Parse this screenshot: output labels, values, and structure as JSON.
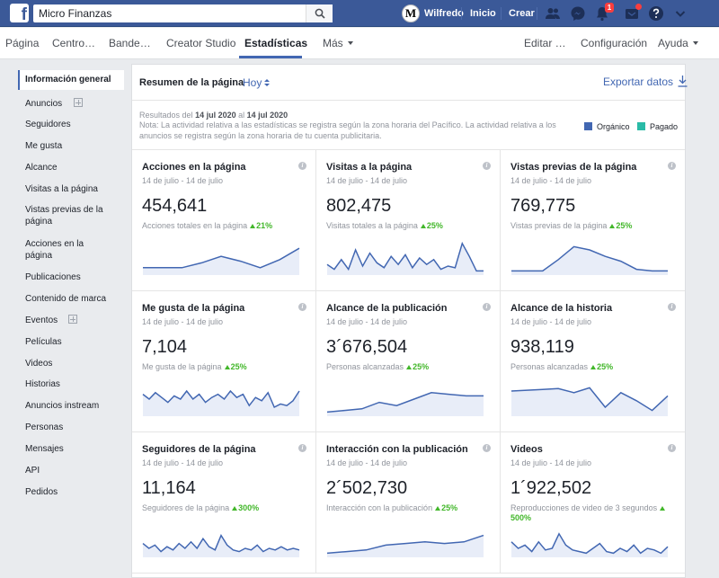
{
  "topbar": {
    "search_value": "Micro Finanzas",
    "user_name": "Wilfredo",
    "user_initial": "M",
    "home_label": "Inicio",
    "create_label": "Crear",
    "notifications_count": "1"
  },
  "pagenav": {
    "items": [
      "Página",
      "Centro…",
      "Bande…",
      "Creator Studio",
      "Estadísticas",
      "Más"
    ],
    "right": [
      "Editar …",
      "Configuración",
      "Ayuda"
    ]
  },
  "sidebar": {
    "items": [
      "Información general",
      "Anuncios",
      "Seguidores",
      "Me gusta",
      "Alcance",
      "Visitas a la página",
      "Vistas previas de la página",
      "Acciones en la página",
      "Publicaciones",
      "Contenido de marca",
      "Eventos",
      "Películas",
      "Videos",
      "Historias",
      "Anuncios instream",
      "Personas",
      "Mensajes",
      "API",
      "Pedidos"
    ]
  },
  "header": {
    "title": "Resumen de la página",
    "period": "Hoy",
    "export": "Exportar datos",
    "results_prefix": "Resultados del",
    "results_from": "14 jul 2020",
    "results_mid": "al",
    "results_to": "14 jul 2020",
    "note": "Nota: La actividad relativa a las estadísticas se registra según la zona horaria del Pacífico. La actividad relativa a los anuncios se registra según la zona horaria de tu cuenta publicitaria.",
    "legend_organic": "Orgánico",
    "legend_paid": "Pagado"
  },
  "colors": {
    "accent": "#4267b2",
    "organic": "#4267b2",
    "paid": "#2abba7",
    "positive": "#42b72a",
    "topbar": "#3b5998"
  },
  "cards": [
    {
      "title": "Acciones en la página",
      "date": "14 de julio - 14 de julio",
      "value": "454,641",
      "sub": "Acciones totales en la página",
      "change": "21%",
      "trend": [
        8,
        8,
        8,
        14,
        22,
        16,
        8,
        18,
        32
      ]
    },
    {
      "title": "Visitas a la página",
      "date": "14 de julio - 14 de julio",
      "value": "802,475",
      "sub": "Visitas totales a la página",
      "change": "25%",
      "trend": [
        12,
        6,
        18,
        6,
        30,
        10,
        26,
        14,
        8,
        22,
        12,
        24,
        8,
        20,
        12,
        18,
        6,
        10,
        8,
        38,
        22,
        4,
        4
      ]
    },
    {
      "title": "Vistas previas de la página",
      "date": "14 de julio - 14 de julio",
      "value": "769,775",
      "sub": "Vistas previas de la página",
      "change": "25%",
      "trend": [
        4,
        4,
        4,
        18,
        34,
        30,
        22,
        16,
        6,
        4,
        4
      ]
    },
    {
      "title": "Me gusta de la página",
      "date": "14 de julio - 14 de julio",
      "value": "7,104",
      "sub": "Me gusta de la página",
      "change": "25%",
      "trend": [
        26,
        20,
        28,
        22,
        16,
        24,
        20,
        30,
        20,
        26,
        16,
        22,
        26,
        20,
        30,
        22,
        26,
        12,
        22,
        18,
        28,
        10,
        14,
        12,
        18,
        30
      ]
    },
    {
      "title": "Alcance de la publicación",
      "date": "14 de julio - 14 de julio",
      "value": "3´676,504",
      "sub": "Personas alcanzadas",
      "change": "25%",
      "trend": [
        4,
        6,
        8,
        16,
        12,
        20,
        28,
        26,
        24,
        24
      ]
    },
    {
      "title": "Alcance de la historia",
      "date": "14 de julio - 14 de julio",
      "value": "938,119",
      "sub": "Personas alcanzadas",
      "change": "25%",
      "trend": [
        30,
        31,
        32,
        33,
        28,
        34,
        10,
        28,
        18,
        6,
        24
      ]
    },
    {
      "title": "Seguidores de la página",
      "date": "14 de julio - 14 de julio",
      "value": "11,164",
      "sub": "Seguidores de la página",
      "change": "300%",
      "trend": [
        16,
        10,
        14,
        6,
        12,
        8,
        16,
        10,
        18,
        10,
        22,
        12,
        8,
        26,
        14,
        8,
        6,
        10,
        8,
        14,
        6,
        10,
        8,
        12,
        8,
        10,
        8
      ]
    },
    {
      "title": "Interacción con la publicación",
      "date": "14 de julio - 14 de julio",
      "value": "2´502,730",
      "sub": "Interacción con la publicación",
      "change": "25%",
      "trend": [
        4,
        6,
        8,
        14,
        16,
        18,
        16,
        18,
        26
      ]
    },
    {
      "title": "Videos",
      "date": "14 de julio - 14 de julio",
      "value": "1´922,502",
      "sub": "Reproducciones de video de 3 segundos",
      "change": "500%",
      "trend": [
        18,
        10,
        14,
        6,
        18,
        8,
        10,
        28,
        14,
        8,
        6,
        4,
        10,
        16,
        6,
        4,
        10,
        6,
        14,
        4,
        10,
        8,
        4,
        12
      ]
    }
  ]
}
